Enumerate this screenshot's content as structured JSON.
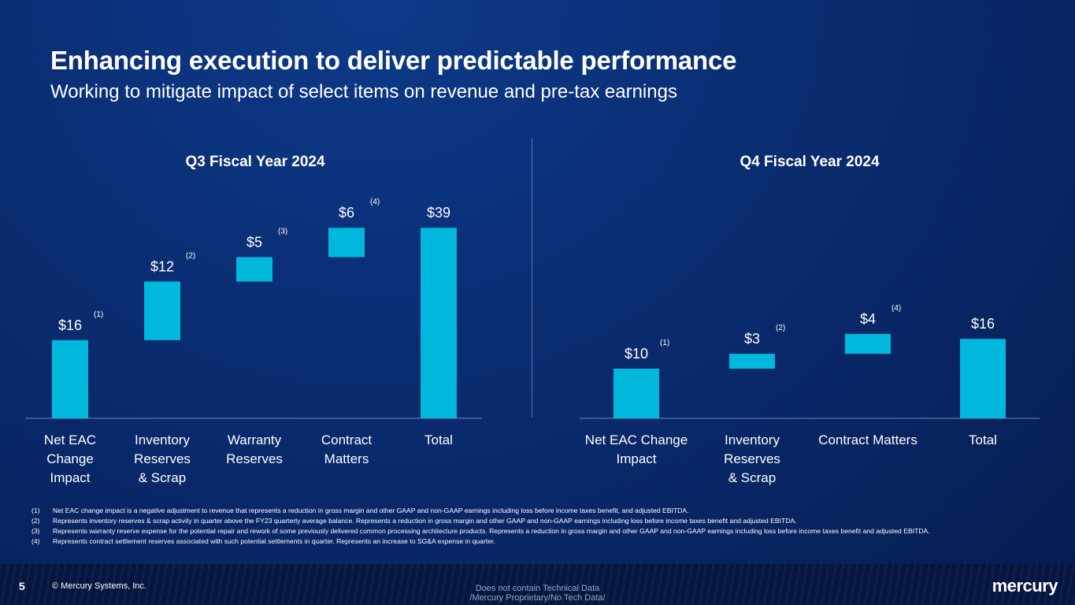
{
  "slide": {
    "title": "Enhancing execution to deliver predictable performance",
    "subtitle": "Working to mitigate impact of select items on revenue and pre-tax earnings",
    "page_number": "5",
    "copyright": "© Mercury Systems, Inc.",
    "classification_line1": "Does not contain Technical Data",
    "classification_line2": "/Mercury Proprietary/No Tech Data/",
    "logo_text": "mercury",
    "bar_color": "#00b8db"
  },
  "chart_data": [
    {
      "type": "bar",
      "subtype": "waterfall",
      "title": "Q3 Fiscal Year 2024",
      "categories": [
        "Net EAC Change Impact",
        "Inventory Reserves & Scrap",
        "Warranty Reserves",
        "Contract Matters",
        "Total"
      ],
      "category_lines": [
        [
          "Net EAC",
          "Change",
          "Impact"
        ],
        [
          "Inventory",
          "Reserves",
          "& Scrap"
        ],
        [
          "Warranty",
          "Reserves"
        ],
        [
          "Contract",
          "Matters"
        ],
        [
          "Total"
        ]
      ],
      "values": [
        16,
        12,
        5,
        6,
        39
      ],
      "labels": [
        "$16",
        "$12",
        "$5",
        "$6",
        "$39"
      ],
      "notes": [
        "(1)",
        "(2)",
        "(3)",
        "(4)",
        ""
      ],
      "ylim": [
        0,
        40
      ]
    },
    {
      "type": "bar",
      "subtype": "waterfall",
      "title": "Q4 Fiscal Year 2024",
      "categories": [
        "Net EAC Change Impact",
        "Inventory Reserves & Scrap",
        "Contract Matters",
        "Total"
      ],
      "category_lines": [
        [
          "Net EAC Change",
          "Impact"
        ],
        [
          "Inventory",
          "Reserves",
          "& Scrap"
        ],
        [
          "Contract Matters"
        ],
        [
          "Total"
        ]
      ],
      "values": [
        10,
        3,
        4,
        16
      ],
      "labels": [
        "$10",
        "$3",
        "$4",
        "$16"
      ],
      "notes": [
        "(1)",
        "(2)",
        "(4)",
        ""
      ],
      "ylim": [
        0,
        26
      ]
    }
  ],
  "footnotes": [
    {
      "num": "(1)",
      "text": "Net EAC change impact is a negative adjustment to revenue that represents a reduction in gross margin and other GAAP and non-GAAP earnings including loss before income taxes benefit, and adjusted EBITDA."
    },
    {
      "num": "(2)",
      "text": "Represents inventory reserves & scrap activity in quarter above the FY23 quarterly average balance. Represents a reduction in gross margin and other GAAP and non-GAAP earnings including loss before income taxes benefit and adjusted EBITDA."
    },
    {
      "num": "(3)",
      "text": "Represents warranty reserve expense for the potential repair and rework of some previously delivered common processing architecture products. Represents a reduction in gross margin and other GAAP and non-GAAP earnings including loss before income taxes benefit and adjusted EBITDA."
    },
    {
      "num": "(4)",
      "text": "Represents contract settlement reserves associated with such potential settlements in quarter. Represents an increase to SG&A expense in quarter."
    }
  ]
}
